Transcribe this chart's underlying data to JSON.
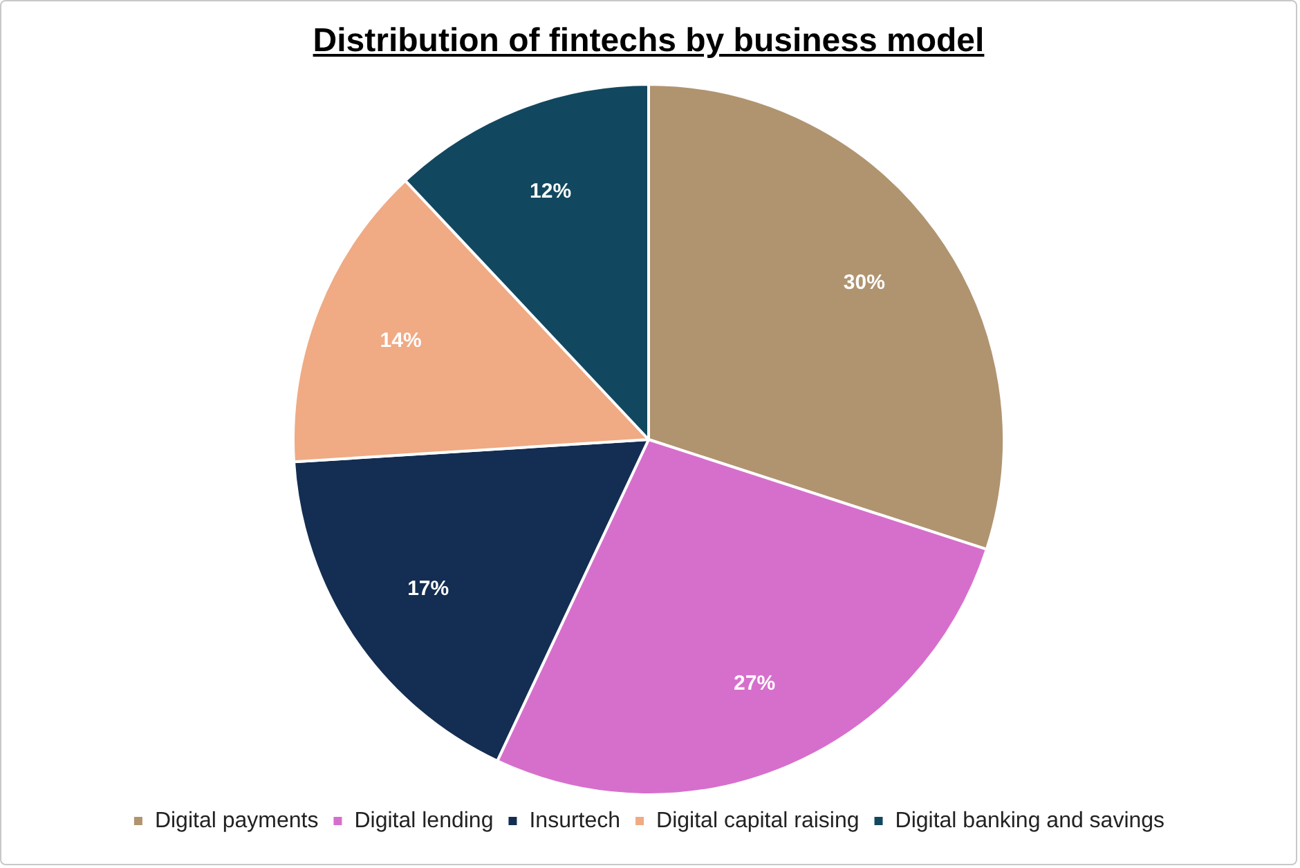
{
  "chart_data": {
    "type": "pie",
    "title": "Distribution of fintechs by business model",
    "categories": [
      "Digital payments",
      "Digital lending",
      "Insurtech",
      "Digital capital raising",
      "Digital banking and savings"
    ],
    "values": [
      30,
      27,
      17,
      14,
      12
    ],
    "colors": [
      "#b09470",
      "#d66fcc",
      "#142d52",
      "#f0aa84",
      "#12485f"
    ],
    "value_labels": [
      "30%",
      "27%",
      "17%",
      "14%",
      "12%"
    ],
    "legend": "bottom"
  }
}
